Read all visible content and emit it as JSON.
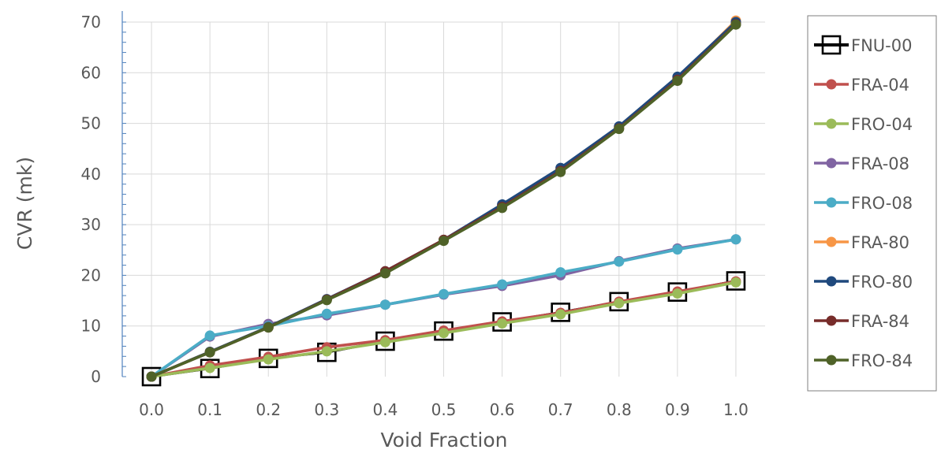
{
  "chart_data": {
    "type": "line",
    "xlabel": "Void Fraction",
    "ylabel": "CVR (mk)",
    "xlim": [
      -0.05,
      1.05
    ],
    "ylim": [
      0,
      70
    ],
    "x_ticks": [
      "0.0",
      "0.1",
      "0.2",
      "0.3",
      "0.4",
      "0.5",
      "0.6",
      "0.7",
      "0.8",
      "0.9",
      "1.0"
    ],
    "y_ticks": [
      "0",
      "10",
      "20",
      "30",
      "40",
      "50",
      "60",
      "70"
    ],
    "grid": true,
    "legend_position": "right",
    "x": [
      0.0,
      0.1,
      0.2,
      0.3,
      0.4,
      0.5,
      0.6,
      0.7,
      0.8,
      0.9,
      1.0
    ],
    "series": [
      {
        "name": "FNU-00",
        "color": "#000000",
        "marker": "square-open",
        "values": [
          0,
          1.6,
          3.6,
          4.8,
          7.0,
          9.0,
          10.8,
          12.7,
          14.8,
          16.7,
          18.9
        ]
      },
      {
        "name": "FRA-04",
        "color": "#C0504D",
        "marker": "circle",
        "values": [
          0,
          2.2,
          3.9,
          5.8,
          7.2,
          9.1,
          10.9,
          12.6,
          14.8,
          16.8,
          18.8
        ]
      },
      {
        "name": "FRO-04",
        "color": "#9BBB59",
        "marker": "circle",
        "values": [
          0,
          1.7,
          3.4,
          5.0,
          6.8,
          8.6,
          10.5,
          12.3,
          14.5,
          16.4,
          18.6
        ]
      },
      {
        "name": "FRA-08",
        "color": "#8064A2",
        "marker": "circle",
        "values": [
          0,
          7.9,
          10.4,
          12.1,
          14.2,
          16.2,
          17.9,
          20.0,
          22.8,
          25.3,
          27.1
        ]
      },
      {
        "name": "FRO-08",
        "color": "#4BACC6",
        "marker": "circle",
        "values": [
          0,
          8.1,
          10.0,
          12.4,
          14.2,
          16.3,
          18.2,
          20.6,
          22.7,
          25.1,
          27.1
        ]
      },
      {
        "name": "FRA-80",
        "color": "#F79646",
        "marker": "circle",
        "values": [
          0,
          4.9,
          9.8,
          15.2,
          20.7,
          27.0,
          33.8,
          41.0,
          49.2,
          58.8,
          70.3
        ]
      },
      {
        "name": "FRO-80",
        "color": "#1F497D",
        "marker": "circle",
        "values": [
          0,
          4.9,
          9.8,
          15.3,
          20.8,
          27.0,
          34.0,
          41.2,
          49.4,
          59.2,
          70.0
        ]
      },
      {
        "name": "FRA-84",
        "color": "#772C2A",
        "marker": "circle",
        "values": [
          0,
          4.8,
          9.7,
          15.2,
          20.8,
          27.0,
          33.5,
          40.6,
          49.0,
          58.6,
          69.6
        ]
      },
      {
        "name": "FRO-84",
        "color": "#4F6228",
        "marker": "circle",
        "values": [
          0,
          4.8,
          9.7,
          15.1,
          20.4,
          26.8,
          33.3,
          40.4,
          48.9,
          58.4,
          69.5
        ]
      }
    ]
  }
}
